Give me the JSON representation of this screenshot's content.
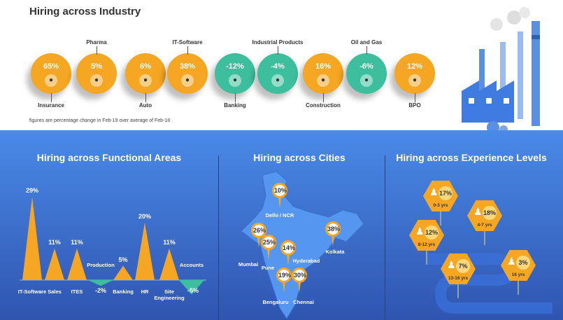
{
  "industry": {
    "title": "Hiring across Industry",
    "note": "figures are percentage change in Feb-19 over average of Feb-18",
    "items": [
      {
        "label": "Insurance",
        "value": "65%",
        "color": "#f5a623",
        "pos": "below",
        "icon": "umbrella-family-icon"
      },
      {
        "label": "Pharma",
        "value": "5%",
        "color": "#f5a623",
        "pos": "above",
        "icon": "flask-icon"
      },
      {
        "label": "Auto",
        "value": "6%",
        "color": "#f5a623",
        "pos": "below",
        "icon": "car-icon"
      },
      {
        "label": "IT-Software",
        "value": "38%",
        "color": "#f5a623",
        "pos": "above",
        "icon": "computer-icon"
      },
      {
        "label": "Banking",
        "value": "-12%",
        "color": "#3dbf9e",
        "pos": "below",
        "icon": "money-bag-icon"
      },
      {
        "label": "Industrial Products",
        "value": "-4%",
        "color": "#3dbf9e",
        "pos": "above",
        "icon": "gear-icon"
      },
      {
        "label": "Construction",
        "value": "16%",
        "color": "#f5a623",
        "pos": "below",
        "icon": "wheelbarrow-icon"
      },
      {
        "label": "Oil and Gas",
        "value": "-6%",
        "color": "#3dbf9e",
        "pos": "above",
        "icon": "barrel-icon"
      },
      {
        "label": "BPO",
        "value": "12%",
        "color": "#f5a623",
        "pos": "below",
        "icon": "headset-icon"
      }
    ]
  },
  "functional": {
    "title": "Hiring across Functional Areas"
  },
  "chart_data": {
    "type": "bar",
    "title": "Hiring across Functional Areas",
    "categories": [
      "IT-Software",
      "Sales",
      "ITES",
      "Production",
      "Banking",
      "HR",
      "Site Engineering",
      "Accounts"
    ],
    "values": [
      29,
      11,
      11,
      -2,
      5,
      20,
      11,
      -5
    ],
    "labels": [
      "29%",
      "11%",
      "11%",
      "-2%",
      "5%",
      "20%",
      "11%",
      "-5%"
    ],
    "ylabel": "%",
    "colors": {
      "positive": "#f5a623",
      "negative": "#3dbf9e"
    }
  },
  "cities": {
    "title": "Hiring across Cities",
    "items": [
      {
        "name": "Delhi / NCR",
        "value": "10%"
      },
      {
        "name": "Kolkata",
        "value": "38%"
      },
      {
        "name": "Mumbai",
        "value": "26%"
      },
      {
        "name": "Pune",
        "value": "25%"
      },
      {
        "name": "Hyderabad",
        "value": "14%"
      },
      {
        "name": "Bengaluru",
        "value": "19%"
      },
      {
        "name": "Chennai",
        "value": "30%"
      }
    ]
  },
  "experience": {
    "title": "Hiring across Experience Levels",
    "items": [
      {
        "level": "0-3 yrs",
        "value": "17%"
      },
      {
        "level": "4-7 yrs",
        "value": "18%"
      },
      {
        "level": "8-12 yrs",
        "value": "12%"
      },
      {
        "level": "13-16 yrs",
        "value": "7%"
      },
      {
        "level": "16 yrs",
        "value": "3%"
      }
    ]
  }
}
